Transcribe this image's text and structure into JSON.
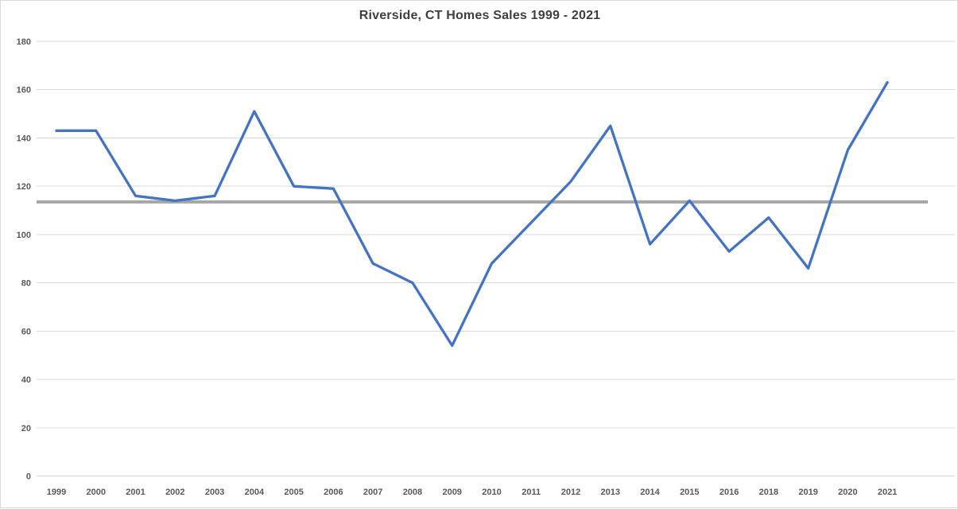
{
  "chart_data": {
    "type": "line",
    "title": "Riverside, CT Homes Sales 1999 - 2021",
    "categories": [
      "1999",
      "2000",
      "2001",
      "2002",
      "2003",
      "2004",
      "2005",
      "2006",
      "2007",
      "2008",
      "2009",
      "2010",
      "2011",
      "2012",
      "2013",
      "2014",
      "2015",
      "2016",
      "2018",
      "2019",
      "2020",
      "2021"
    ],
    "values": [
      143,
      143,
      116,
      114,
      116,
      151,
      120,
      119,
      88,
      80,
      54,
      88,
      105,
      122,
      145,
      96,
      114,
      93,
      107,
      86,
      135,
      163
    ],
    "y_ticks": [
      0,
      20,
      40,
      60,
      80,
      100,
      120,
      140,
      160,
      180
    ],
    "ylim": [
      0,
      180
    ],
    "xlabel": "",
    "ylabel": "",
    "grid": true,
    "legend": false,
    "reference_line": {
      "name": "average-line",
      "value": 113.5
    },
    "colors": {
      "series_line": "#4472c4",
      "reference_line": "#a6a6a6",
      "gridline": "#d9d9d9",
      "chart_border": "#d9d9d9",
      "axis_label": "#595959",
      "title": "#3f3f3f",
      "background": "#ffffff"
    }
  }
}
